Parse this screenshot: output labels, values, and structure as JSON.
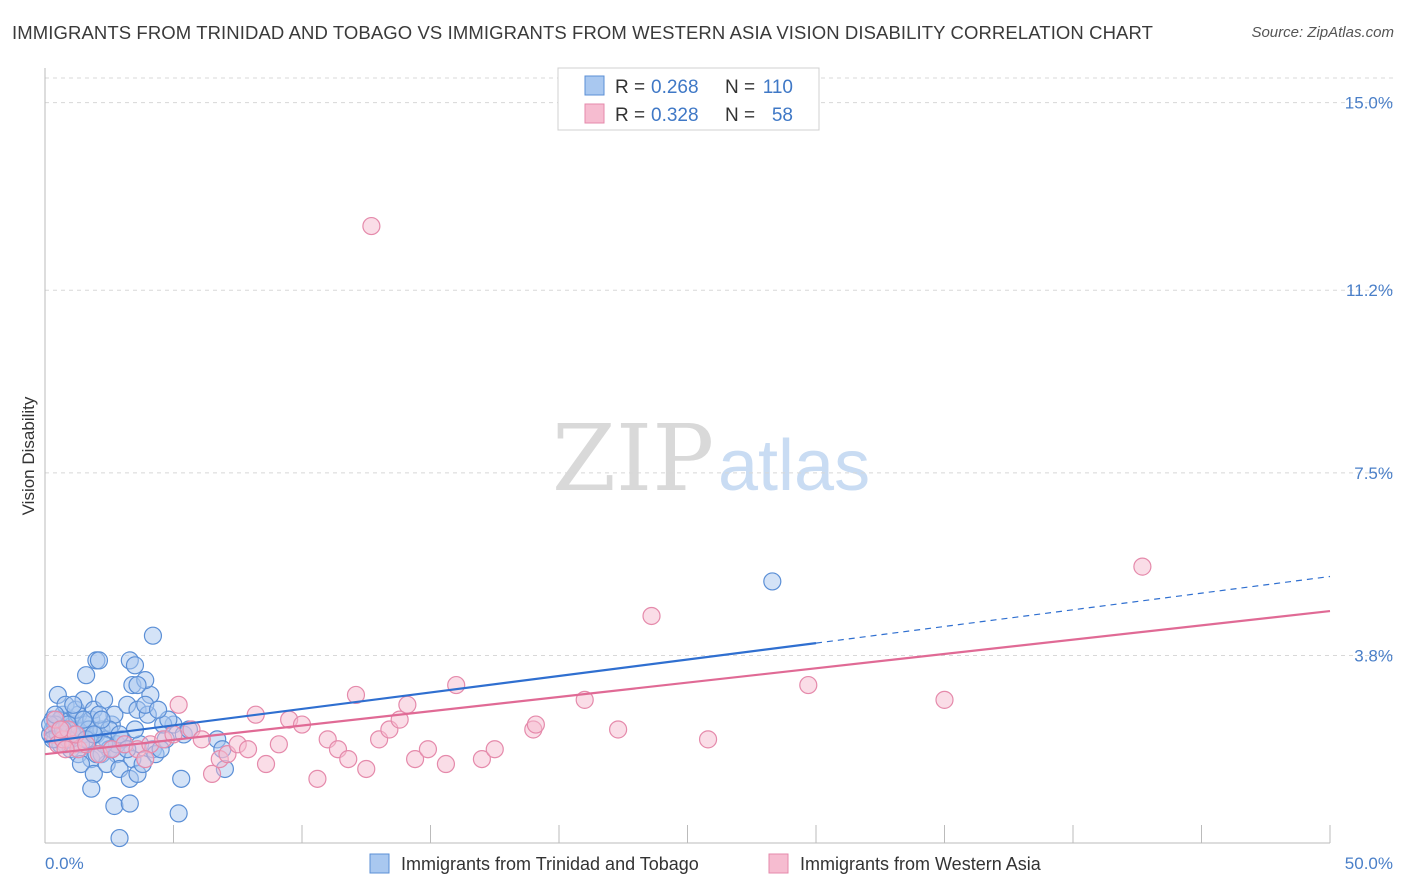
{
  "header": {
    "title": "IMMIGRANTS FROM TRINIDAD AND TOBAGO VS IMMIGRANTS FROM WESTERN ASIA VISION DISABILITY CORRELATION CHART",
    "source": "Source: ZipAtlas.com"
  },
  "watermark": {
    "zip": "ZIP",
    "atlas": "atlas"
  },
  "legend": {
    "r_label": "R =",
    "n_label": "N =",
    "items": [
      {
        "r": "0.268",
        "n": "110"
      },
      {
        "r": "0.328",
        "n": "58"
      }
    ]
  },
  "colors": {
    "series1_fill": "#a9c8f0",
    "series1_stroke": "#5b8fd6",
    "series1_line": "#2f6fd0",
    "series2_fill": "#f6bcd0",
    "series2_stroke": "#e58aab",
    "series2_line": "#e06a95"
  },
  "chart_data": {
    "type": "scatter",
    "ylabel": "Vision Disability",
    "xlim": [
      0,
      50
    ],
    "ylim": [
      0,
      15.5
    ],
    "x_tick_labels": [
      "0.0%",
      "50.0%"
    ],
    "y_ticks": [
      3.8,
      7.5,
      11.2,
      15.0
    ],
    "y_tick_labels": [
      "3.8%",
      "7.5%",
      "11.2%",
      "15.0%"
    ],
    "series": [
      {
        "name": "Immigrants from Trinidad and Tobago",
        "r": 0.268,
        "n": 110,
        "trend": {
          "x0": 0,
          "y0": 2.05,
          "x1": 30,
          "y1": 4.05,
          "dashed_to_x": 50,
          "dashed_to_y": 5.4
        },
        "points": [
          [
            0.2,
            2.2
          ],
          [
            0.3,
            2.5
          ],
          [
            0.4,
            2.1
          ],
          [
            0.5,
            2.4
          ],
          [
            0.6,
            2.3
          ],
          [
            0.7,
            2.6
          ],
          [
            0.8,
            2.0
          ],
          [
            0.9,
            2.2
          ],
          [
            1.0,
            2.5
          ],
          [
            1.1,
            2.4
          ],
          [
            0.3,
            2.3
          ],
          [
            0.5,
            2.2
          ],
          [
            0.6,
            2.5
          ],
          [
            0.8,
            2.3
          ],
          [
            1.0,
            2.1
          ],
          [
            1.2,
            2.3
          ],
          [
            1.3,
            2.6
          ],
          [
            1.5,
            2.2
          ],
          [
            1.6,
            2.4
          ],
          [
            1.7,
            2.1
          ],
          [
            0.4,
            2.4
          ],
          [
            0.7,
            2.2
          ],
          [
            0.9,
            2.4
          ],
          [
            1.1,
            2.2
          ],
          [
            1.4,
            2.0
          ],
          [
            1.8,
            2.5
          ],
          [
            2.0,
            2.2
          ],
          [
            2.2,
            2.3
          ],
          [
            2.4,
            2.1
          ],
          [
            2.6,
            2.4
          ],
          [
            0.5,
            3.0
          ],
          [
            0.8,
            2.8
          ],
          [
            1.2,
            2.7
          ],
          [
            1.5,
            2.9
          ],
          [
            1.9,
            2.7
          ],
          [
            2.3,
            2.9
          ],
          [
            2.7,
            2.6
          ],
          [
            3.2,
            2.8
          ],
          [
            3.6,
            2.7
          ],
          [
            4.1,
            3.0
          ],
          [
            1.6,
            3.4
          ],
          [
            2.0,
            3.7
          ],
          [
            2.1,
            3.7
          ],
          [
            3.3,
            3.7
          ],
          [
            3.5,
            3.6
          ],
          [
            3.4,
            3.2
          ],
          [
            3.9,
            3.3
          ],
          [
            4.2,
            4.2
          ],
          [
            3.6,
            3.2
          ],
          [
            4.0,
            2.6
          ],
          [
            1.0,
            1.9
          ],
          [
            1.3,
            1.8
          ],
          [
            1.8,
            1.7
          ],
          [
            2.2,
            1.8
          ],
          [
            2.5,
            1.9
          ],
          [
            2.8,
            1.8
          ],
          [
            3.1,
            2.0
          ],
          [
            3.4,
            1.7
          ],
          [
            3.7,
            2.0
          ],
          [
            4.2,
            1.9
          ],
          [
            1.4,
            1.6
          ],
          [
            1.9,
            1.4
          ],
          [
            2.4,
            1.6
          ],
          [
            2.9,
            1.5
          ],
          [
            3.3,
            1.3
          ],
          [
            3.6,
            1.4
          ],
          [
            4.3,
            1.8
          ],
          [
            4.7,
            2.1
          ],
          [
            5.0,
            2.4
          ],
          [
            5.4,
            2.2
          ],
          [
            1.8,
            1.1
          ],
          [
            2.7,
            0.75
          ],
          [
            3.3,
            0.8
          ],
          [
            2.9,
            0.1
          ],
          [
            5.2,
            0.6
          ],
          [
            5.3,
            1.3
          ],
          [
            7.0,
            1.5
          ],
          [
            6.7,
            2.1
          ],
          [
            6.9,
            1.9
          ],
          [
            4.6,
            2.4
          ],
          [
            0.6,
            2.0
          ],
          [
            0.9,
            2.1
          ],
          [
            1.7,
            2.3
          ],
          [
            2.1,
            2.6
          ],
          [
            2.5,
            2.3
          ],
          [
            2.8,
            2.0
          ],
          [
            3.0,
            2.1
          ],
          [
            3.8,
            1.6
          ],
          [
            4.8,
            2.5
          ],
          [
            5.6,
            2.3
          ],
          [
            0.2,
            2.4
          ],
          [
            0.4,
            2.6
          ],
          [
            1.1,
            2.8
          ],
          [
            1.5,
            2.5
          ],
          [
            2.3,
            2.0
          ],
          [
            2.6,
            1.9
          ],
          [
            3.5,
            2.3
          ],
          [
            4.5,
            1.9
          ],
          [
            3.9,
            2.8
          ],
          [
            2.0,
            1.8
          ],
          [
            0.3,
            2.1
          ],
          [
            0.7,
            2.3
          ],
          [
            1.2,
            2.2
          ],
          [
            1.6,
            2.1
          ],
          [
            2.2,
            2.5
          ],
          [
            2.9,
            2.2
          ],
          [
            3.2,
            1.9
          ],
          [
            1.9,
            2.2
          ],
          [
            28.3,
            5.3
          ],
          [
            4.4,
            2.7
          ]
        ]
      },
      {
        "name": "Immigrants from Western Asia",
        "r": 0.328,
        "n": 58,
        "trend": {
          "x0": 0,
          "y0": 1.8,
          "x1": 50,
          "y1": 4.7
        },
        "points": [
          [
            0.3,
            2.2
          ],
          [
            0.5,
            2.0
          ],
          [
            0.7,
            2.1
          ],
          [
            0.9,
            2.3
          ],
          [
            1.1,
            2.0
          ],
          [
            1.3,
            1.9
          ],
          [
            0.4,
            2.5
          ],
          [
            0.6,
            2.3
          ],
          [
            0.8,
            1.9
          ],
          [
            1.2,
            2.2
          ],
          [
            1.6,
            2.0
          ],
          [
            2.1,
            1.8
          ],
          [
            2.6,
            1.9
          ],
          [
            3.1,
            2.0
          ],
          [
            3.6,
            1.9
          ],
          [
            4.1,
            2.0
          ],
          [
            4.6,
            2.1
          ],
          [
            5.2,
            2.8
          ],
          [
            5.7,
            2.3
          ],
          [
            6.1,
            2.1
          ],
          [
            6.5,
            1.4
          ],
          [
            6.8,
            1.7
          ],
          [
            7.1,
            1.8
          ],
          [
            7.5,
            2.0
          ],
          [
            7.9,
            1.9
          ],
          [
            8.2,
            2.6
          ],
          [
            8.6,
            1.6
          ],
          [
            9.1,
            2.0
          ],
          [
            9.5,
            2.5
          ],
          [
            10.0,
            2.4
          ],
          [
            10.6,
            1.3
          ],
          [
            11.0,
            2.1
          ],
          [
            11.4,
            1.9
          ],
          [
            11.8,
            1.7
          ],
          [
            12.1,
            3.0
          ],
          [
            12.5,
            1.5
          ],
          [
            12.7,
            12.5
          ],
          [
            13.0,
            2.1
          ],
          [
            13.4,
            2.3
          ],
          [
            13.8,
            2.5
          ],
          [
            14.1,
            2.8
          ],
          [
            14.4,
            1.7
          ],
          [
            14.9,
            1.9
          ],
          [
            15.6,
            1.6
          ],
          [
            16.0,
            3.2
          ],
          [
            17.0,
            1.7
          ],
          [
            17.5,
            1.9
          ],
          [
            19.0,
            2.3
          ],
          [
            19.1,
            2.4
          ],
          [
            21.0,
            2.9
          ],
          [
            22.3,
            2.3
          ],
          [
            23.6,
            4.6
          ],
          [
            25.8,
            2.1
          ],
          [
            29.7,
            3.2
          ],
          [
            35.0,
            2.9
          ],
          [
            42.7,
            5.6
          ],
          [
            3.9,
            1.7
          ],
          [
            5.0,
            2.2
          ]
        ]
      }
    ]
  },
  "bottom_legend": [
    {
      "label": "Immigrants from Trinidad and Tobago"
    },
    {
      "label": "Immigrants from Western Asia"
    }
  ]
}
